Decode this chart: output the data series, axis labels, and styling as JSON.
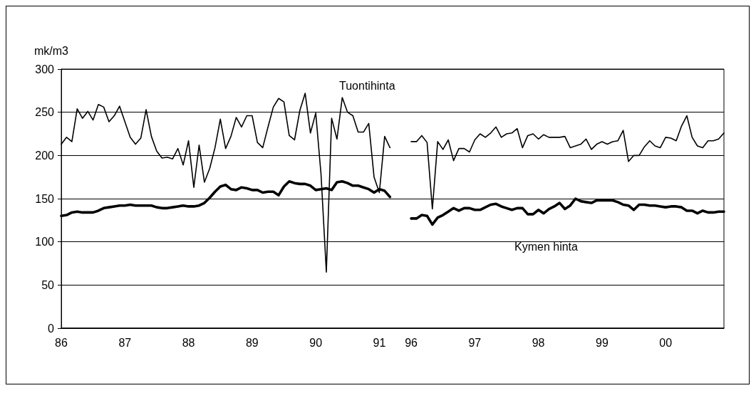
{
  "chart_data": {
    "type": "line",
    "ylabel": "mk/m3",
    "categories": [
      "86",
      null,
      null,
      null,
      null,
      null,
      null,
      null,
      null,
      null,
      null,
      null,
      "87",
      null,
      null,
      null,
      null,
      null,
      null,
      null,
      null,
      null,
      null,
      null,
      "88",
      null,
      null,
      null,
      null,
      null,
      null,
      null,
      null,
      null,
      null,
      null,
      "89",
      null,
      null,
      null,
      null,
      null,
      null,
      null,
      null,
      null,
      null,
      null,
      "90",
      null,
      null,
      null,
      null,
      null,
      null,
      null,
      null,
      null,
      null,
      null,
      "91",
      null,
      null,
      null,
      null,
      null,
      "96",
      null,
      null,
      null,
      null,
      null,
      null,
      null,
      null,
      null,
      null,
      null,
      "97",
      null,
      null,
      null,
      null,
      null,
      null,
      null,
      null,
      null,
      null,
      null,
      "98",
      null,
      null,
      null,
      null,
      null,
      null,
      null,
      null,
      null,
      null,
      null,
      "99",
      null,
      null,
      null,
      null,
      null,
      null,
      null,
      null,
      null,
      null,
      null,
      "00",
      null,
      null,
      null,
      null,
      null,
      null,
      null,
      null,
      null,
      null,
      null
    ],
    "series": [
      {
        "name": "Tuontihinta",
        "color": "#000000",
        "values": [
          213,
          221,
          216,
          254,
          243,
          251,
          241,
          259,
          256,
          239,
          246,
          257,
          239,
          221,
          213,
          220,
          253,
          222,
          205,
          197,
          198,
          196,
          208,
          189,
          217,
          163,
          212,
          169,
          185,
          209,
          242,
          208,
          222,
          244,
          233,
          246,
          246,
          215,
          209,
          233,
          256,
          266,
          262,
          223,
          218,
          252,
          272,
          226,
          249,
          178,
          65,
          243,
          219,
          267,
          250,
          246,
          227,
          227,
          237,
          175,
          157,
          222,
          209,
          null,
          null,
          null,
          216,
          216,
          223,
          215,
          138,
          216,
          207,
          218,
          194,
          208,
          208,
          204,
          218,
          225,
          221,
          226,
          233,
          221,
          225,
          226,
          231,
          209,
          223,
          225,
          219,
          224,
          221,
          221,
          221,
          222,
          209,
          211,
          213,
          219,
          207,
          213,
          216,
          213,
          216,
          217,
          229,
          193,
          200,
          200,
          210,
          217,
          211,
          209,
          221,
          220,
          217,
          234,
          246,
          221,
          211,
          209,
          217,
          217,
          219,
          226
        ]
      },
      {
        "name": "Kymen hinta",
        "color": "#000000",
        "values": [
          130,
          131,
          134,
          135,
          134,
          134,
          134,
          136,
          139,
          140,
          141,
          142,
          142,
          143,
          142,
          142,
          142,
          142,
          140,
          139,
          139,
          140,
          141,
          142,
          141,
          141,
          142,
          145,
          151,
          158,
          164,
          166,
          161,
          160,
          163,
          162,
          160,
          160,
          157,
          158,
          158,
          154,
          164,
          170,
          168,
          167,
          167,
          165,
          160,
          161,
          162,
          160,
          169,
          170,
          168,
          165,
          165,
          163,
          161,
          157,
          161,
          159,
          152,
          null,
          null,
          null,
          127,
          127,
          131,
          130,
          120,
          128,
          131,
          135,
          139,
          136,
          139,
          139,
          137,
          137,
          140,
          143,
          144,
          141,
          139,
          137,
          139,
          139,
          132,
          132,
          137,
          133,
          138,
          141,
          145,
          138,
          142,
          150,
          147,
          146,
          145,
          148,
          148,
          148,
          148,
          146,
          143,
          142,
          137,
          143,
          143,
          142,
          142,
          141,
          140,
          141,
          141,
          140,
          136,
          136,
          133,
          136,
          134,
          134,
          135,
          135
        ]
      }
    ],
    "ylim": [
      0,
      300
    ],
    "yticks": [
      0,
      50,
      100,
      150,
      200,
      250,
      300
    ],
    "grid": "y",
    "marker": "none",
    "line_style": "solid"
  }
}
